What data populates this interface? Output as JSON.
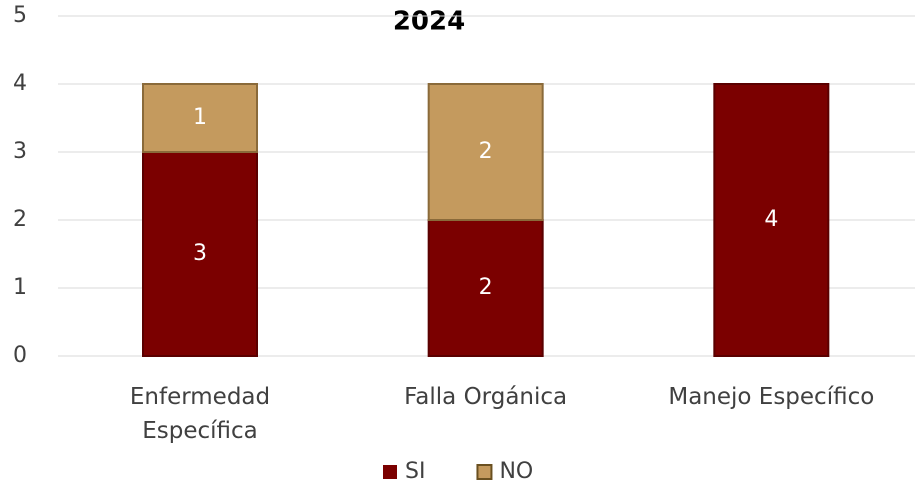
{
  "chart_data": {
    "type": "stacked_bar",
    "title": "2024",
    "categories": [
      "Enfermedad Específica",
      "Falla Orgánica",
      "Manejo Específico"
    ],
    "series": [
      {
        "name": "SI",
        "color": "#7b0000",
        "values": [
          3,
          2,
          4
        ]
      },
      {
        "name": "NO",
        "color": "#c49a5e",
        "values": [
          1,
          2,
          null
        ]
      }
    ],
    "ylim": [
      0,
      5
    ],
    "yticks": [
      0,
      1,
      2,
      3,
      4,
      5
    ],
    "grid": true,
    "legend": "bottom"
  }
}
